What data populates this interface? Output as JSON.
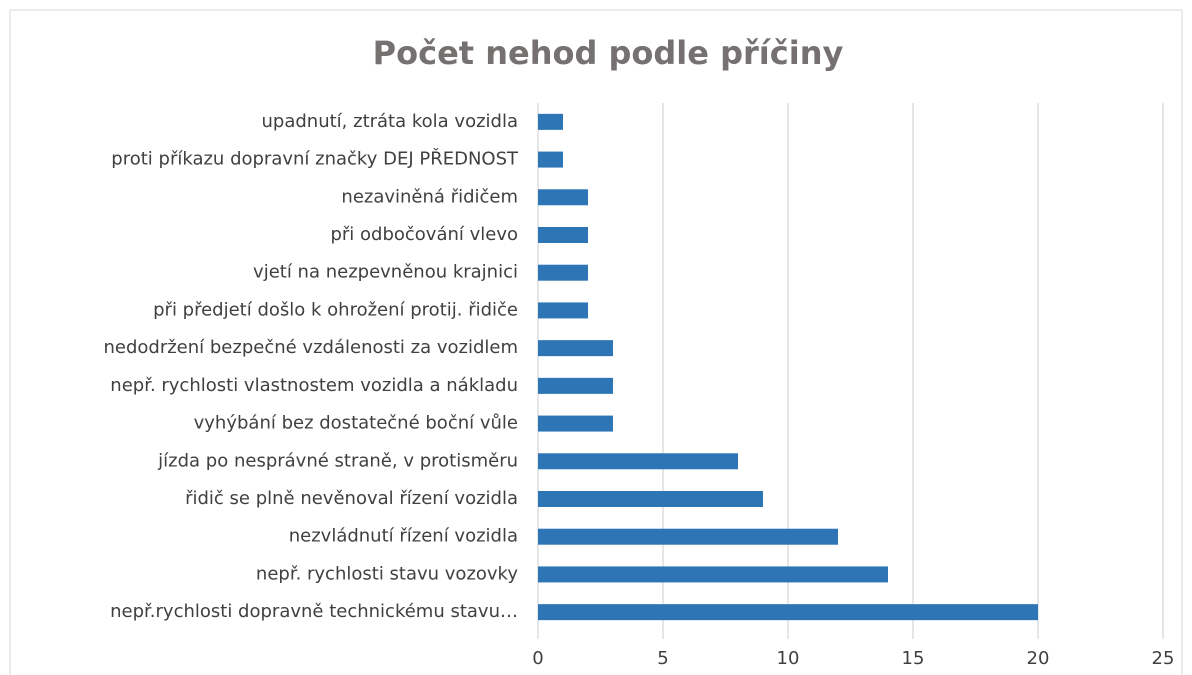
{
  "chart_data": {
    "type": "bar",
    "orientation": "horizontal",
    "title": "Počet nehod podle příčiny",
    "categories": [
      "upadnutí, ztráta kola vozidla",
      "proti příkazu dopravní značky DEJ PŘEDNOST",
      "nezaviněná řidičem",
      "při odbočování vlevo",
      "vjetí na nezpevněnou krajnici",
      "při předjetí došlo k ohrožení protij. řidiče",
      "nedodržení bezpečné vzdálenosti za vozidlem",
      "nepř. rychlosti vlastnostem vozidla a nákladu",
      "vyhýbání bez dostatečné boční vůle",
      "jízda po nesprávné straně, v protisměru",
      "řidič se plně nevěnoval řízení vozidla",
      "nezvládnutí řízení vozidla",
      "nepř. rychlosti stavu vozovky",
      "nepř.rychlosti dopravně technickému stavu…"
    ],
    "values": [
      1,
      1,
      2,
      2,
      2,
      2,
      3,
      3,
      3,
      8,
      9,
      12,
      14,
      20
    ],
    "color": "#2e75b6",
    "xlim": [
      0,
      25
    ],
    "xticks": [
      0,
      5,
      10,
      15,
      20,
      25
    ],
    "grid": true
  }
}
